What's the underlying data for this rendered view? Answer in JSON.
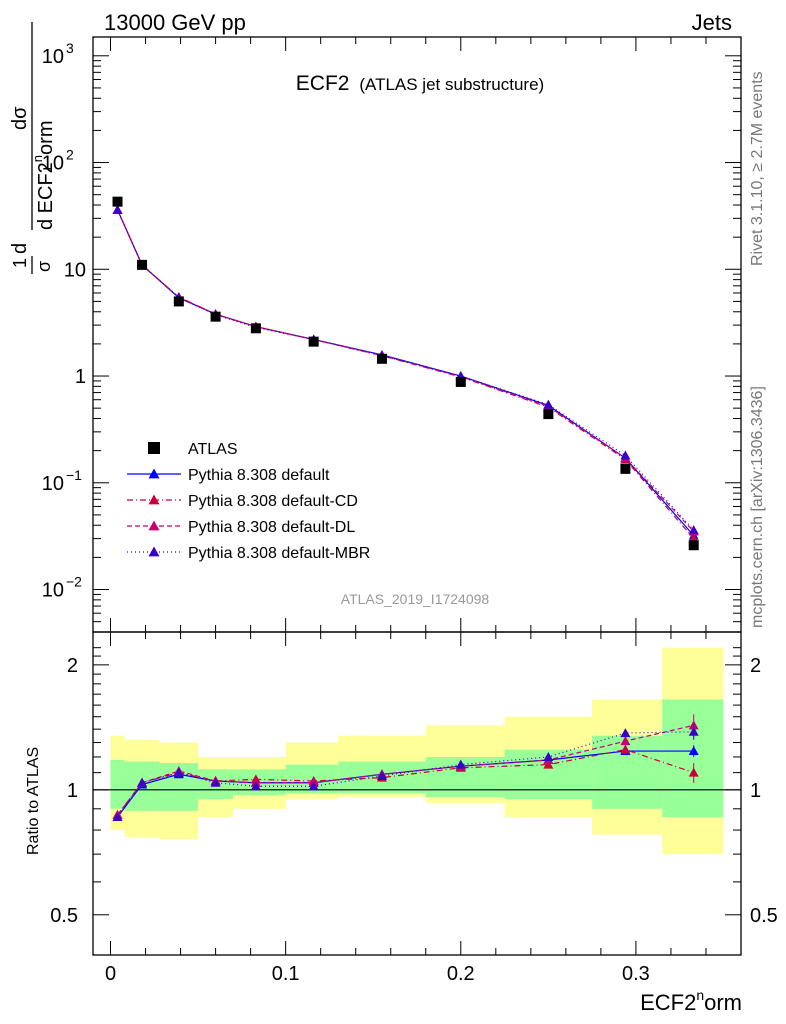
{
  "header": {
    "left": "13000 GeV pp",
    "right": "Jets",
    "title_main": "ECF2",
    "title_sub": "(ATLAS jet substructure)",
    "analysis_id": "ATLAS_2019_I1724098"
  },
  "side_labels": {
    "rivet": "Rivet 3.1.10, ≥ 2.7M events",
    "mcplots": "mcplots.cern.ch [arXiv:1306.3436]"
  },
  "axes": {
    "xlabel_base": "ECF2",
    "xlabel_sup": "n",
    "xlabel_tail": "orm",
    "ylabel_top": {
      "frac_num": "1",
      "frac_den": "σ",
      "d1": "dσ",
      "d2": "d ECF2",
      "sup": "n",
      "tail": "orm"
    },
    "ylabel_ratio": "Ratio to ATLAS",
    "x_ticks": [
      "0",
      "0.1",
      "0.2",
      "0.3"
    ],
    "y_ticks_top": [
      {
        "v": 1000,
        "base": "10",
        "exp": "3"
      },
      {
        "v": 100,
        "base": "10",
        "exp": "2"
      },
      {
        "v": 10,
        "base": "10",
        "exp": ""
      },
      {
        "v": 1,
        "base": "1",
        "exp": ""
      },
      {
        "v": 0.1,
        "base": "10",
        "exp": "−1"
      },
      {
        "v": 0.01,
        "base": "10",
        "exp": "−2"
      }
    ],
    "y_ticks_ratio": [
      "2",
      "1",
      "0.5"
    ]
  },
  "legend": [
    {
      "label": "ATLAS",
      "style": "data"
    },
    {
      "label": "Pythia 8.308 default",
      "style": "solid",
      "color": "#0000ff"
    },
    {
      "label": "Pythia 8.308 default-CD",
      "style": "dashdot",
      "color": "#c8003c"
    },
    {
      "label": "Pythia 8.308 default-DL",
      "style": "dashed",
      "color": "#c8006e"
    },
    {
      "label": "Pythia 8.308 default-MBR",
      "style": "dotted",
      "color": "#3a00c8"
    }
  ],
  "chart_data": {
    "type": "line",
    "x_scale": "linear",
    "y_scale_top": "log",
    "xlim": [
      -0.01,
      0.36
    ],
    "ylim_top": [
      0.004,
      1500
    ],
    "ylim_ratio": [
      0.4,
      2.4
    ],
    "bins": [
      {
        "lo": 0.0,
        "hi": 0.008
      },
      {
        "lo": 0.008,
        "hi": 0.028
      },
      {
        "lo": 0.028,
        "hi": 0.05
      },
      {
        "lo": 0.05,
        "hi": 0.07
      },
      {
        "lo": 0.07,
        "hi": 0.1
      },
      {
        "lo": 0.1,
        "hi": 0.13
      },
      {
        "lo": 0.13,
        "hi": 0.18
      },
      {
        "lo": 0.18,
        "hi": 0.225
      },
      {
        "lo": 0.225,
        "hi": 0.275
      },
      {
        "lo": 0.275,
        "hi": 0.315
      },
      {
        "lo": 0.315,
        "hi": 0.35
      }
    ],
    "x": [
      0.004,
      0.018,
      0.039,
      0.06,
      0.083,
      0.116,
      0.155,
      0.2,
      0.25,
      0.294,
      0.333
    ],
    "data": {
      "name": "ATLAS",
      "values": [
        43,
        11,
        5.0,
        3.6,
        2.8,
        2.1,
        1.45,
        0.88,
        0.44,
        0.135,
        0.026
      ]
    },
    "band_yellow": [
      [
        0.8,
        1.35
      ],
      [
        0.77,
        1.32
      ],
      [
        0.76,
        1.3
      ],
      [
        0.86,
        1.2
      ],
      [
        0.9,
        1.2
      ],
      [
        0.95,
        1.3
      ],
      [
        0.96,
        1.35
      ],
      [
        0.93,
        1.43
      ],
      [
        0.86,
        1.5
      ],
      [
        0.78,
        1.65
      ],
      [
        0.7,
        2.2
      ]
    ],
    "band_green": [
      [
        0.9,
        1.18
      ],
      [
        0.89,
        1.17
      ],
      [
        0.89,
        1.16
      ],
      [
        0.95,
        1.12
      ],
      [
        0.97,
        1.12
      ],
      [
        0.98,
        1.15
      ],
      [
        0.98,
        1.17
      ],
      [
        0.96,
        1.2
      ],
      [
        0.95,
        1.25
      ],
      [
        0.9,
        1.35
      ],
      [
        0.86,
        1.65
      ]
    ],
    "series": [
      {
        "name": "Pythia 8.308 default",
        "color": "#0000ff",
        "dash": "",
        "values": [
          36,
          11,
          5.4,
          3.8,
          2.9,
          2.2,
          1.58,
          1.0,
          0.53,
          0.17,
          0.032
        ],
        "ratio": [
          0.86,
          1.03,
          1.09,
          1.05,
          1.04,
          1.04,
          1.09,
          1.14,
          1.18,
          1.24,
          1.24
        ],
        "ratio_err": [
          0.01,
          0.005,
          0.005,
          0.005,
          0.005,
          0.005,
          0.005,
          0.01,
          0.01,
          0.02,
          0.04
        ]
      },
      {
        "name": "Pythia 8.308 default-CD",
        "color": "#c8003c",
        "dash": "6,3,1,3",
        "values": [
          36,
          10.9,
          5.5,
          3.8,
          2.9,
          2.2,
          1.55,
          0.98,
          0.51,
          0.165,
          0.03
        ],
        "ratio": [
          0.87,
          1.04,
          1.1,
          1.05,
          1.06,
          1.05,
          1.07,
          1.13,
          1.15,
          1.25,
          1.1
        ],
        "ratio_err": [
          0.01,
          0.005,
          0.005,
          0.005,
          0.005,
          0.005,
          0.005,
          0.01,
          0.01,
          0.03,
          0.06
        ]
      },
      {
        "name": "Pythia 8.308 default-DL",
        "color": "#c8006e",
        "dash": "5,3",
        "values": [
          36,
          11,
          5.45,
          3.8,
          2.9,
          2.2,
          1.56,
          0.99,
          0.52,
          0.17,
          0.035
        ],
        "ratio": [
          0.87,
          1.04,
          1.11,
          1.05,
          1.04,
          1.04,
          1.09,
          1.14,
          1.18,
          1.31,
          1.43
        ],
        "ratio_err": [
          0.01,
          0.005,
          0.005,
          0.005,
          0.005,
          0.005,
          0.005,
          0.01,
          0.01,
          0.03,
          0.09
        ]
      },
      {
        "name": "Pythia 8.308 default-MBR",
        "color": "#3a00c8",
        "dash": "1,3",
        "values": [
          36,
          11,
          5.45,
          3.75,
          2.85,
          2.2,
          1.55,
          1.0,
          0.54,
          0.18,
          0.036
        ],
        "ratio": [
          0.86,
          1.04,
          1.1,
          1.04,
          1.02,
          1.02,
          1.08,
          1.15,
          1.2,
          1.37,
          1.38
        ],
        "ratio_err": [
          0.01,
          0.005,
          0.005,
          0.005,
          0.005,
          0.005,
          0.005,
          0.01,
          0.01,
          0.03,
          0.06
        ]
      }
    ]
  }
}
